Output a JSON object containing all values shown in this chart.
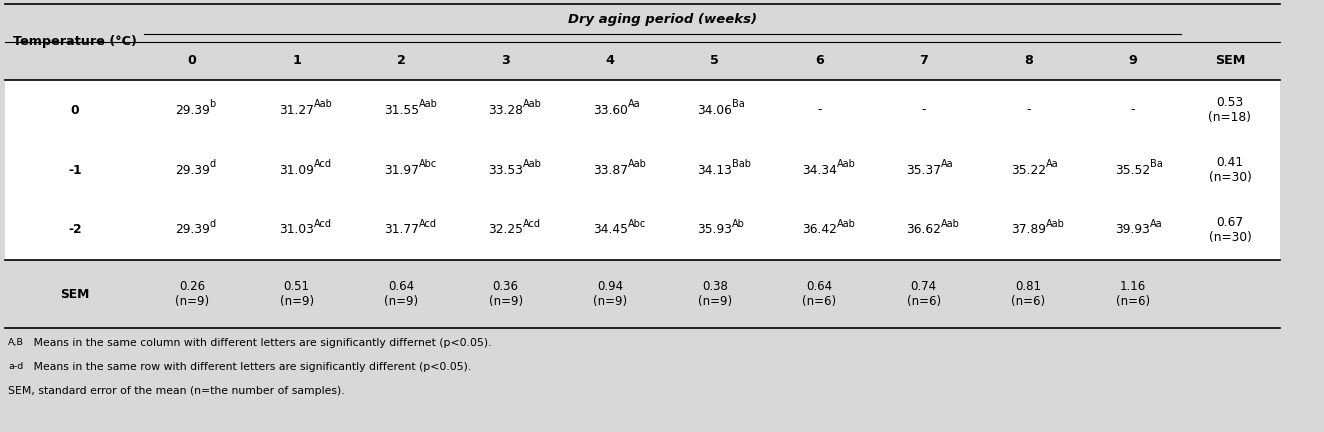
{
  "title": "Dry aging period (weeks)",
  "col_header_label": "Temperature (°C)",
  "col_weeks": [
    "0",
    "1",
    "2",
    "3",
    "4",
    "5",
    "6",
    "7",
    "8",
    "9"
  ],
  "sem_label": "SEM",
  "cells": [
    {
      "temp": "0",
      "values": [
        {
          "v": "29.39",
          "s": "b"
        },
        {
          "v": "31.27",
          "s": "Aab"
        },
        {
          "v": "31.55",
          "s": "Aab"
        },
        {
          "v": "33.28",
          "s": "Aab"
        },
        {
          "v": "33.60",
          "s": "Aa"
        },
        {
          "v": "34.06",
          "s": "Ba"
        },
        {
          "v": "-",
          "s": ""
        },
        {
          "v": "-",
          "s": ""
        },
        {
          "v": "-",
          "s": ""
        },
        {
          "v": "-",
          "s": ""
        }
      ],
      "sem": "0.53\n(n=18)"
    },
    {
      "temp": "-1",
      "values": [
        {
          "v": "29.39",
          "s": "d"
        },
        {
          "v": "31.09",
          "s": "Acd"
        },
        {
          "v": "31.97",
          "s": "Abc"
        },
        {
          "v": "33.53",
          "s": "Aab"
        },
        {
          "v": "33.87",
          "s": "Aab"
        },
        {
          "v": "34.13",
          "s": "Bab"
        },
        {
          "v": "34.34",
          "s": "Aab"
        },
        {
          "v": "35.37",
          "s": "Aa"
        },
        {
          "v": "35.22",
          "s": "Aa"
        },
        {
          "v": "35.52",
          "s": "Ba"
        }
      ],
      "sem": "0.41\n(n=30)"
    },
    {
      "temp": "-2",
      "values": [
        {
          "v": "29.39",
          "s": "d"
        },
        {
          "v": "31.03",
          "s": "Acd"
        },
        {
          "v": "31.77",
          "s": "Acd"
        },
        {
          "v": "32.25",
          "s": "Acd"
        },
        {
          "v": "34.45",
          "s": "Abc"
        },
        {
          "v": "35.93",
          "s": "Ab"
        },
        {
          "v": "36.42",
          "s": "Aab"
        },
        {
          "v": "36.62",
          "s": "Aab"
        },
        {
          "v": "37.89",
          "s": "Aab"
        },
        {
          "v": "39.93",
          "s": "Aa"
        }
      ],
      "sem": "0.67\n(n=30)"
    }
  ],
  "sem_row": [
    "0.26\n(n=9)",
    "0.51\n(n=9)",
    "0.64\n(n=9)",
    "0.36\n(n=9)",
    "0.94\n(n=9)",
    "0.38\n(n=9)",
    "0.64\n(n=6)",
    "0.74\n(n=6)",
    "0.81\n(n=6)",
    "1.16\n(n=6)"
  ],
  "footnotes": [
    {
      "sup": "A,B",
      "text": " Means in the same column with different letters are significantly differnet (p<0.05)."
    },
    {
      "sup": "a-d",
      "text": " Means in the same row with different letters are significantly different (p<0.05)."
    },
    {
      "sup": "",
      "text": "SEM, standard error of the mean (n=the number of samples)."
    }
  ],
  "bg_color": "#d8d8d8",
  "white_color": "#ffffff",
  "text_color": "#000000",
  "border_color": "#000000",
  "fig_width": 13.24,
  "fig_height": 4.32,
  "dpi": 100
}
